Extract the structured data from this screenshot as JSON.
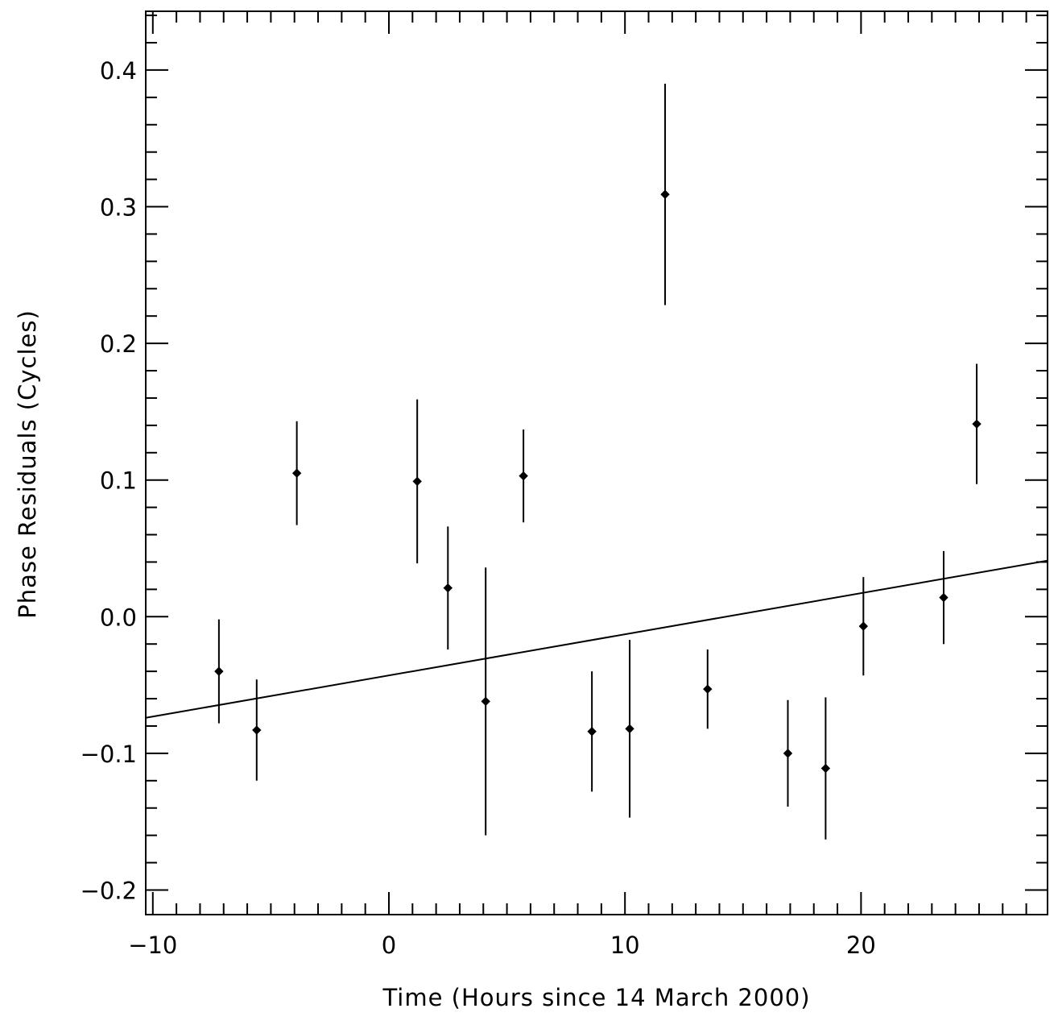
{
  "chart_data": {
    "type": "scatter",
    "title": "",
    "xlabel": "Time (Hours since 14 March 2000)",
    "ylabel": "Phase Residuals (Cycles)",
    "xlim": [
      -10.3,
      27.9
    ],
    "ylim": [
      -0.218,
      0.443
    ],
    "x_ticks": [
      -10,
      0,
      10,
      20
    ],
    "x_tick_labels": [
      "−10",
      "0",
      "10",
      "20"
    ],
    "x_minor_step": 1,
    "y_ticks": [
      -0.2,
      -0.1,
      0.0,
      0.1,
      0.2,
      0.3,
      0.4
    ],
    "y_tick_labels": [
      "−0.2",
      "−0.1",
      "0.0",
      "0.1",
      "0.2",
      "0.3",
      "0.4"
    ],
    "y_minor_step": 0.02,
    "grid": false,
    "series": [
      {
        "kind": "points_with_error_bars",
        "points": [
          {
            "x": -7.2,
            "y": -0.04,
            "err": 0.038
          },
          {
            "x": -5.6,
            "y": -0.083,
            "err": 0.037
          },
          {
            "x": -3.9,
            "y": 0.105,
            "err": 0.038
          },
          {
            "x": 1.2,
            "y": 0.099,
            "err": 0.06
          },
          {
            "x": 2.5,
            "y": 0.021,
            "err": 0.045
          },
          {
            "x": 4.1,
            "y": -0.062,
            "err": 0.098
          },
          {
            "x": 5.7,
            "y": 0.103,
            "err": 0.034
          },
          {
            "x": 8.6,
            "y": -0.084,
            "err": 0.044
          },
          {
            "x": 10.2,
            "y": -0.082,
            "err": 0.065
          },
          {
            "x": 11.7,
            "y": 0.309,
            "err": 0.081
          },
          {
            "x": 13.5,
            "y": -0.053,
            "err": 0.029
          },
          {
            "x": 16.9,
            "y": -0.1,
            "err": 0.039
          },
          {
            "x": 18.5,
            "y": -0.111,
            "err": 0.052
          },
          {
            "x": 20.1,
            "y": -0.007,
            "err": 0.036
          },
          {
            "x": 23.5,
            "y": 0.014,
            "err": 0.034
          },
          {
            "x": 24.9,
            "y": 0.141,
            "err": 0.044
          }
        ]
      },
      {
        "kind": "fit_line",
        "x": [
          -10.3,
          27.9
        ],
        "y": [
          -0.074,
          0.041
        ]
      }
    ]
  }
}
